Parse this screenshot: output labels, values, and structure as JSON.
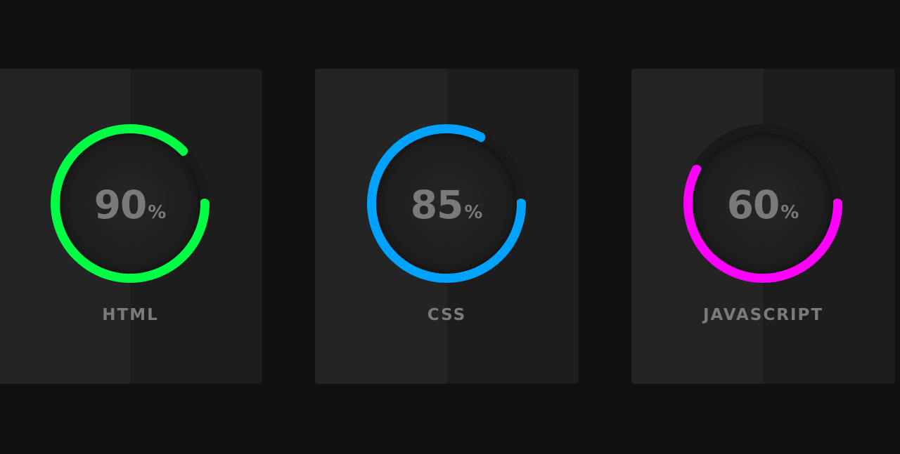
{
  "skills": [
    {
      "name": "HTML",
      "percent": 90,
      "unit": "%",
      "color": "#00ff44"
    },
    {
      "name": "CSS",
      "percent": 85,
      "unit": "%",
      "color": "#00a2ff"
    },
    {
      "name": "JAVASCRIPT",
      "percent": 60,
      "unit": "%",
      "color": "#ff00ff"
    }
  ],
  "colors": {
    "background": "#111111",
    "card": "#242424",
    "track": "#1a1a1a",
    "text": "#7a7a7a"
  }
}
